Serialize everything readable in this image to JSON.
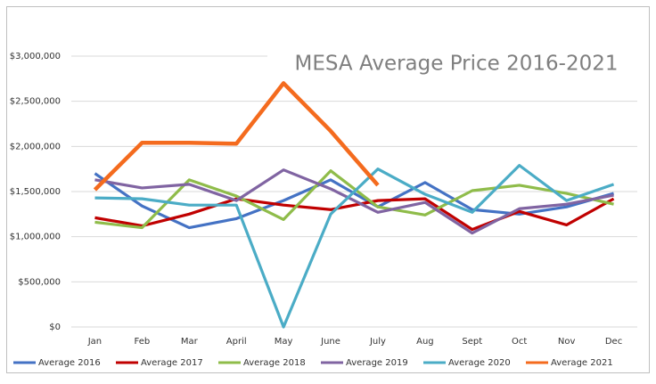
{
  "chart_data": {
    "type": "line",
    "title": "MESA Average Price 2016-2021",
    "categories": [
      "Jan",
      "Feb",
      "Mar",
      "April",
      "May",
      "June",
      "July",
      "Aug",
      "Sept",
      "Oct",
      "Nov",
      "Dec"
    ],
    "series": [
      {
        "name": "Average 2016",
        "color": "#4472c4",
        "values": [
          1700000,
          1340000,
          1100000,
          1200000,
          1400000,
          1630000,
          1330000,
          1600000,
          1300000,
          1250000,
          1330000,
          1480000
        ]
      },
      {
        "name": "Average 2017",
        "color": "#c00000",
        "values": [
          1210000,
          1120000,
          1250000,
          1420000,
          1350000,
          1300000,
          1400000,
          1420000,
          1080000,
          1280000,
          1130000,
          1420000
        ]
      },
      {
        "name": "Average 2018",
        "color": "#8fbc4a",
        "values": [
          1160000,
          1100000,
          1630000,
          1450000,
          1190000,
          1730000,
          1330000,
          1240000,
          1510000,
          1570000,
          1480000,
          1360000
        ]
      },
      {
        "name": "Average 2019",
        "color": "#8064a2",
        "values": [
          1630000,
          1540000,
          1580000,
          1400000,
          1740000,
          1530000,
          1270000,
          1380000,
          1040000,
          1310000,
          1360000,
          1460000
        ]
      },
      {
        "name": "Average 2020",
        "color": "#4bacc6",
        "values": [
          1430000,
          1420000,
          1350000,
          1350000,
          0,
          1250000,
          1750000,
          1470000,
          1270000,
          1790000,
          1400000,
          1580000
        ]
      },
      {
        "name": "Average 2021",
        "color": "#f46b1e",
        "values": [
          1520000,
          2040000,
          2040000,
          2030000,
          2700000,
          2170000,
          1570000,
          null,
          null,
          null,
          null,
          null
        ]
      }
    ],
    "ylim": [
      0,
      3000000
    ],
    "yticks": [
      {
        "value": 0,
        "label": "$0"
      },
      {
        "value": 500000,
        "label": "$500,000"
      },
      {
        "value": 1000000,
        "label": "$1,000,000"
      },
      {
        "value": 1500000,
        "label": "$1,500,000"
      },
      {
        "value": 2000000,
        "label": "$2,000,000"
      },
      {
        "value": 2500000,
        "label": "$2,500,000"
      },
      {
        "value": 3000000,
        "label": "$3,000,000"
      }
    ],
    "grid": true,
    "legend": "bottom"
  }
}
